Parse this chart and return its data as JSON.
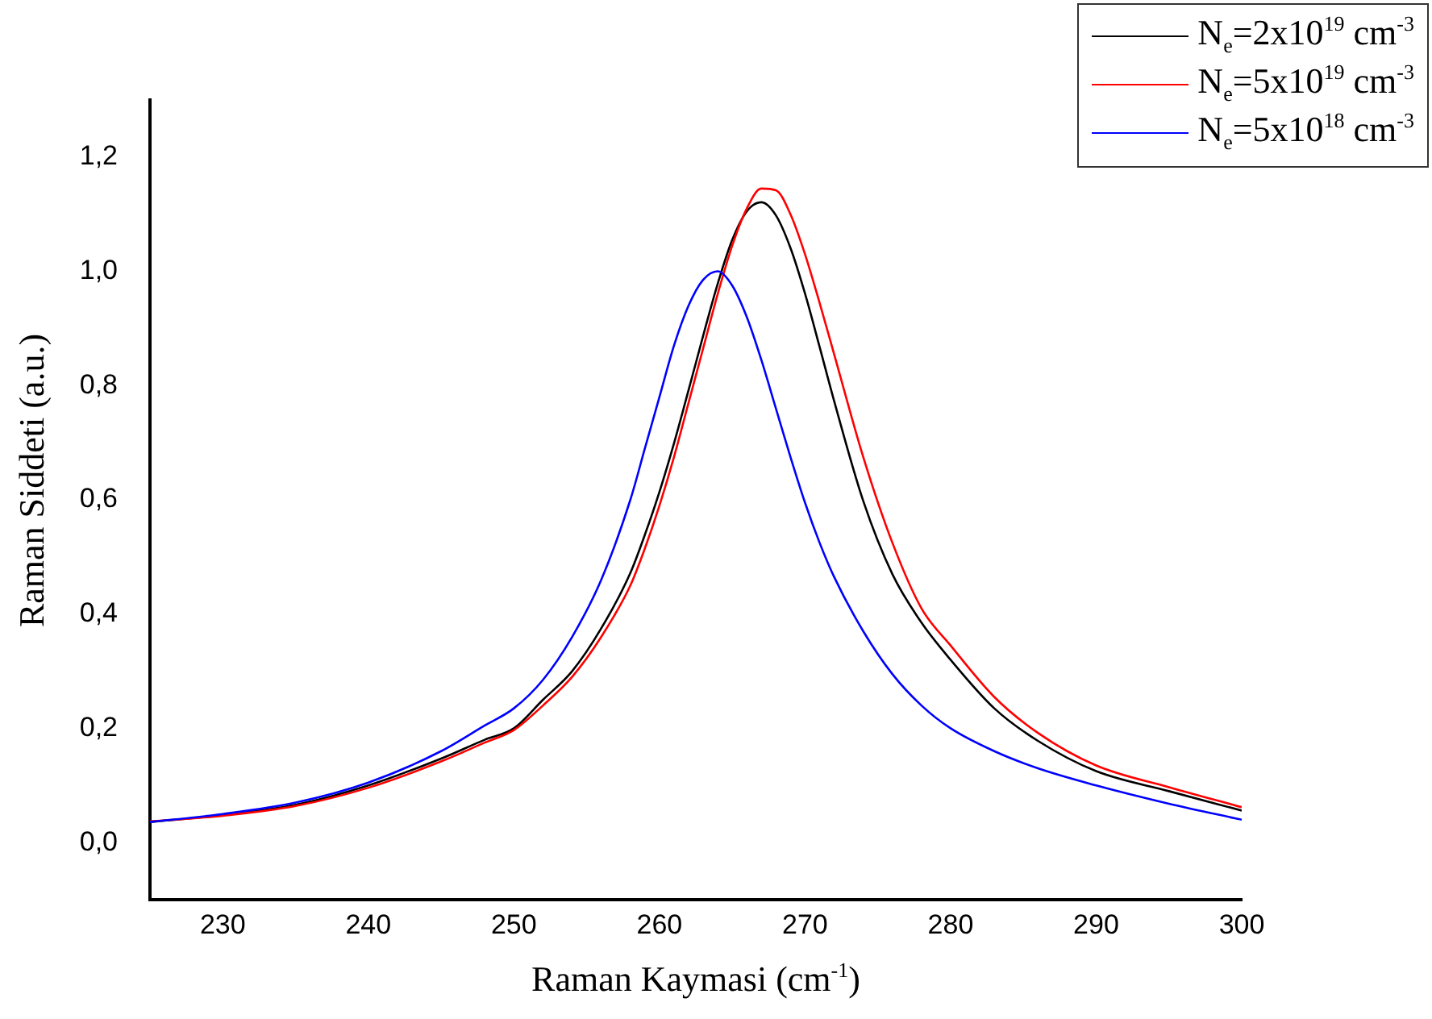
{
  "chart_data": {
    "type": "line",
    "xlabel": "Raman Kaymasi (cm$^{-1}$)",
    "ylabel": "Raman Siddeti (a.u.)",
    "x": [
      225,
      230,
      235,
      240,
      245,
      248,
      250,
      252,
      254,
      256,
      258,
      259,
      260,
      261,
      262,
      263,
      264,
      265,
      266,
      267,
      268,
      269,
      270,
      271,
      272,
      274,
      276,
      278,
      280,
      283,
      286,
      290,
      295,
      300
    ],
    "series": [
      {
        "name": "N$_{e}$=2x10$^{19}$ cm$^{-3}$",
        "color": "#000000",
        "values": [
          0.036,
          0.048,
          0.066,
          0.1,
          0.147,
          0.18,
          0.2,
          0.25,
          0.3,
          0.375,
          0.472,
          0.539,
          0.614,
          0.699,
          0.792,
          0.887,
          0.978,
          1.055,
          1.105,
          1.121,
          1.098,
          1.041,
          0.961,
          0.868,
          0.773,
          0.598,
          0.47,
          0.385,
          0.32,
          0.235,
          0.178,
          0.125,
          0.09,
          0.056
        ]
      },
      {
        "name": "N$_{e}$=5x10$^{19}$ cm$^{-3}$",
        "color": "#ff0000",
        "values": [
          0.037,
          0.047,
          0.064,
          0.096,
          0.142,
          0.175,
          0.197,
          0.24,
          0.29,
          0.36,
          0.45,
          0.515,
          0.59,
          0.675,
          0.77,
          0.865,
          0.96,
          1.045,
          1.11,
          1.145,
          1.142,
          1.1,
          1.03,
          0.945,
          0.855,
          0.675,
          0.525,
          0.41,
          0.345,
          0.255,
          0.192,
          0.135,
          0.097,
          0.062
        ]
      },
      {
        "name": "N$_{e}$=5x10$^{18}$ cm$^{-3}$",
        "color": "#0000ff",
        "values": [
          0.036,
          0.05,
          0.07,
          0.105,
          0.16,
          0.205,
          0.235,
          0.285,
          0.36,
          0.46,
          0.6,
          0.69,
          0.78,
          0.87,
          0.94,
          0.985,
          1.0,
          0.975,
          0.92,
          0.845,
          0.76,
          0.675,
          0.595,
          0.525,
          0.465,
          0.37,
          0.295,
          0.24,
          0.2,
          0.16,
          0.13,
          0.1,
          0.068,
          0.04
        ]
      }
    ],
    "xlim": [
      225,
      300
    ],
    "xticks": [
      230,
      240,
      250,
      260,
      270,
      280,
      290,
      300
    ],
    "ylim": [
      -0.1,
      1.3
    ],
    "yticks": [
      {
        "value": 0,
        "label": "0,0"
      },
      {
        "value": 0.2,
        "label": "0,2"
      },
      {
        "value": 0.4,
        "label": "0,4"
      },
      {
        "value": 0.6,
        "label": "0,6"
      },
      {
        "value": 0.8,
        "label": "0,8"
      },
      {
        "value": 1,
        "label": "1,0"
      },
      {
        "value": 1.2,
        "label": "1,2"
      }
    ],
    "grid": false,
    "legend": "top right",
    "marker": "none",
    "line_style": "solid"
  }
}
